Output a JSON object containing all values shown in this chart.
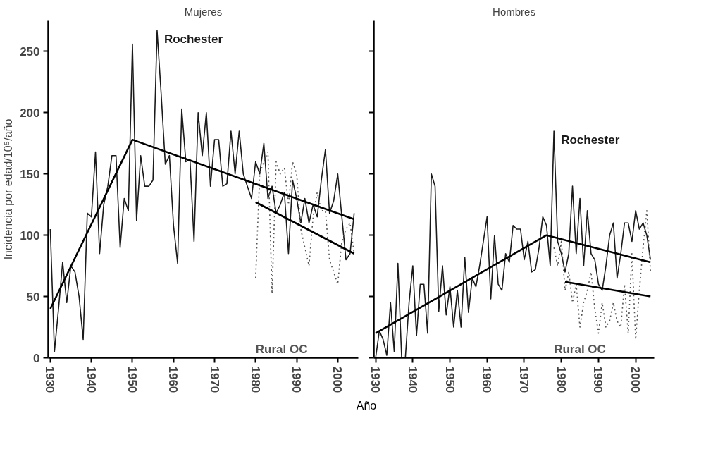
{
  "chart_data": [
    {
      "type": "line",
      "title": "Mujeres",
      "ylabel": "Incidencia por edad/10⁵/año",
      "xlabel": "Año",
      "xlim": [
        1929.5,
        2005
      ],
      "xticks": [
        1930,
        1940,
        1950,
        1960,
        1970,
        1980,
        1990,
        2000
      ],
      "ylim": [
        0,
        275
      ],
      "yticks": [
        0,
        50,
        100,
        150,
        200,
        250
      ],
      "grid": false,
      "marker": "none",
      "series": [
        {
          "name": "Rochester",
          "color": "#1a1a1a",
          "line_style": "solid",
          "x": [
            1930,
            1931,
            1932,
            1933,
            1934,
            1935,
            1936,
            1937,
            1938,
            1939,
            1940,
            1941,
            1942,
            1943,
            1944,
            1945,
            1946,
            1947,
            1948,
            1949,
            1950,
            1951,
            1952,
            1953,
            1954,
            1955,
            1956,
            1957,
            1958,
            1959,
            1960,
            1961,
            1962,
            1963,
            1964,
            1965,
            1966,
            1967,
            1968,
            1969,
            1970,
            1971,
            1972,
            1973,
            1974,
            1975,
            1976,
            1977,
            1978,
            1979,
            1980,
            1981,
            1982,
            1983,
            1984,
            1985,
            1986,
            1987,
            1988,
            1989,
            1990,
            1991,
            1992,
            1993,
            1994,
            1995,
            1996,
            1997,
            1998,
            1999,
            2000,
            2001,
            2002,
            2003,
            2004
          ],
          "values": [
            105,
            5,
            40,
            78,
            45,
            75,
            70,
            50,
            15,
            118,
            115,
            168,
            85,
            125,
            140,
            165,
            165,
            90,
            130,
            120,
            256,
            112,
            165,
            140,
            140,
            145,
            267,
            215,
            158,
            165,
            108,
            77,
            203,
            160,
            162,
            95,
            200,
            165,
            200,
            140,
            178,
            178,
            140,
            142,
            185,
            150,
            185,
            150,
            140,
            130,
            160,
            150,
            175,
            130,
            140,
            118,
            125,
            135,
            85,
            145,
            130,
            110,
            130,
            110,
            125,
            115,
            145,
            170,
            118,
            128,
            150,
            115,
            80,
            85,
            118
          ]
        },
        {
          "name": "Rural OC",
          "color": "#555555",
          "line_style": "dotted",
          "x": [
            1980,
            1981,
            1982,
            1983,
            1984,
            1985,
            1986,
            1987,
            1988,
            1989,
            1990,
            1991,
            1992,
            1993,
            1994,
            1995,
            1996,
            1997,
            1998,
            1999,
            2000,
            2001,
            2002,
            2003,
            2004
          ],
          "values": [
            65,
            150,
            160,
            168,
            52,
            160,
            150,
            155,
            125,
            160,
            150,
            105,
            90,
            75,
            115,
            135,
            120,
            120,
            80,
            70,
            60,
            95,
            105,
            110,
            85
          ]
        },
        {
          "color": "#000000",
          "line_style": "solid",
          "x": [
            1930,
            1950,
            2004
          ],
          "values": [
            40,
            178,
            113
          ]
        },
        {
          "color": "#000000",
          "line_style": "solid",
          "x": [
            1980,
            2004
          ],
          "values": [
            127,
            85
          ]
        }
      ]
    },
    {
      "type": "line",
      "title": "Hombres",
      "xlim": [
        1929.5,
        2005
      ],
      "xticks": [
        1930,
        1940,
        1950,
        1960,
        1970,
        1980,
        1990,
        2000
      ],
      "ylim": [
        0,
        275
      ],
      "yticks": [
        0,
        50,
        100,
        150,
        200,
        250
      ],
      "tick_labels": "x",
      "grid": false,
      "marker": "none",
      "series": [
        {
          "name": "Rochester",
          "color": "#1a1a1a",
          "line_style": "solid",
          "x": [
            1930,
            1931,
            1932,
            1933,
            1934,
            1935,
            1936,
            1937,
            1938,
            1939,
            1940,
            1941,
            1942,
            1943,
            1944,
            1945,
            1946,
            1947,
            1948,
            1949,
            1950,
            1951,
            1952,
            1953,
            1954,
            1955,
            1956,
            1957,
            1958,
            1959,
            1960,
            1961,
            1962,
            1963,
            1964,
            1965,
            1966,
            1967,
            1968,
            1969,
            1970,
            1971,
            1972,
            1973,
            1974,
            1975,
            1976,
            1977,
            1978,
            1979,
            1980,
            1981,
            1982,
            1983,
            1984,
            1985,
            1986,
            1987,
            1988,
            1989,
            1990,
            1991,
            1992,
            1993,
            1994,
            1995,
            1996,
            1997,
            1998,
            1999,
            2000,
            2001,
            2002,
            2003,
            2004
          ],
          "values": [
            0,
            22,
            15,
            2,
            45,
            5,
            77,
            0,
            0,
            45,
            75,
            18,
            60,
            60,
            20,
            150,
            140,
            38,
            75,
            35,
            58,
            25,
            55,
            25,
            82,
            37,
            65,
            58,
            75,
            95,
            115,
            48,
            100,
            60,
            55,
            85,
            78,
            108,
            105,
            105,
            80,
            95,
            70,
            72,
            90,
            115,
            108,
            75,
            185,
            95,
            85,
            70,
            85,
            140,
            85,
            130,
            75,
            120,
            85,
            80,
            60,
            55,
            75,
            100,
            110,
            65,
            85,
            110,
            110,
            95,
            120,
            105,
            110,
            100,
            80
          ]
        },
        {
          "name": "Rural OC",
          "color": "#555555",
          "line_style": "dotted",
          "x": [
            1978,
            1979,
            1980,
            1981,
            1982,
            1983,
            1984,
            1985,
            1986,
            1987,
            1988,
            1989,
            1990,
            1991,
            1992,
            1993,
            1994,
            1995,
            1996,
            1997,
            1998,
            1999,
            2000,
            2001,
            2002,
            2003,
            2004
          ],
          "values": [
            90,
            75,
            95,
            55,
            70,
            45,
            60,
            25,
            45,
            55,
            70,
            40,
            20,
            45,
            25,
            30,
            45,
            30,
            25,
            60,
            20,
            85,
            15,
            55,
            90,
            120,
            70
          ]
        },
        {
          "color": "#000000",
          "line_style": "solid",
          "x": [
            1930,
            1976,
            2004
          ],
          "values": [
            20,
            100,
            78
          ]
        },
        {
          "color": "#000000",
          "line_style": "solid",
          "x": [
            1981,
            2004
          ],
          "values": [
            62,
            50
          ]
        }
      ]
    }
  ]
}
